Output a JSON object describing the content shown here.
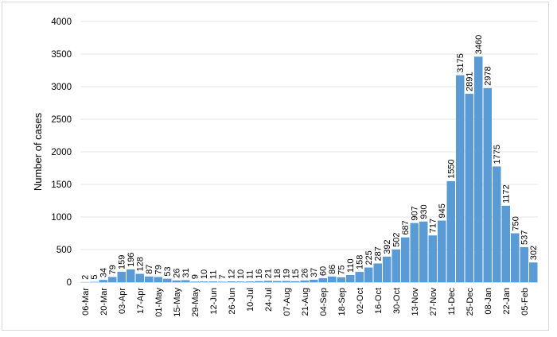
{
  "chart_data": {
    "type": "bar",
    "title": "",
    "xlabel": "",
    "ylabel": "Number of cases",
    "ylim": [
      0,
      4000
    ],
    "yticks": [
      0,
      500,
      1000,
      1500,
      2000,
      2500,
      3000,
      3500,
      4000
    ],
    "grid": "horizontal",
    "bar_color": "#5b9bd5",
    "x_tick_labels": [
      "06-Mar",
      "20-Mar",
      "03-Apr",
      "17-Apr",
      "01-May",
      "15-May",
      "29-May",
      "12-Jun",
      "26-Jun",
      "10-Jul",
      "24-Jul",
      "07-Aug",
      "21-Aug",
      "04-Sep",
      "18-Sep",
      "02-Oct",
      "16-Oct",
      "30-Oct",
      "13-Nov",
      "27-Nov",
      "11-Dec",
      "25-Dec",
      "08-Jan",
      "22-Jan",
      "05-Feb"
    ],
    "values": [
      2,
      5,
      34,
      79,
      159,
      196,
      128,
      87,
      79,
      53,
      26,
      31,
      9,
      10,
      11,
      7,
      12,
      10,
      11,
      16,
      21,
      18,
      19,
      15,
      26,
      37,
      60,
      86,
      75,
      110,
      158,
      225,
      287,
      392,
      502,
      687,
      907,
      930,
      717,
      945,
      1550,
      3175,
      2891,
      3460,
      2978,
      1775,
      1172,
      750,
      537,
      302
    ]
  }
}
